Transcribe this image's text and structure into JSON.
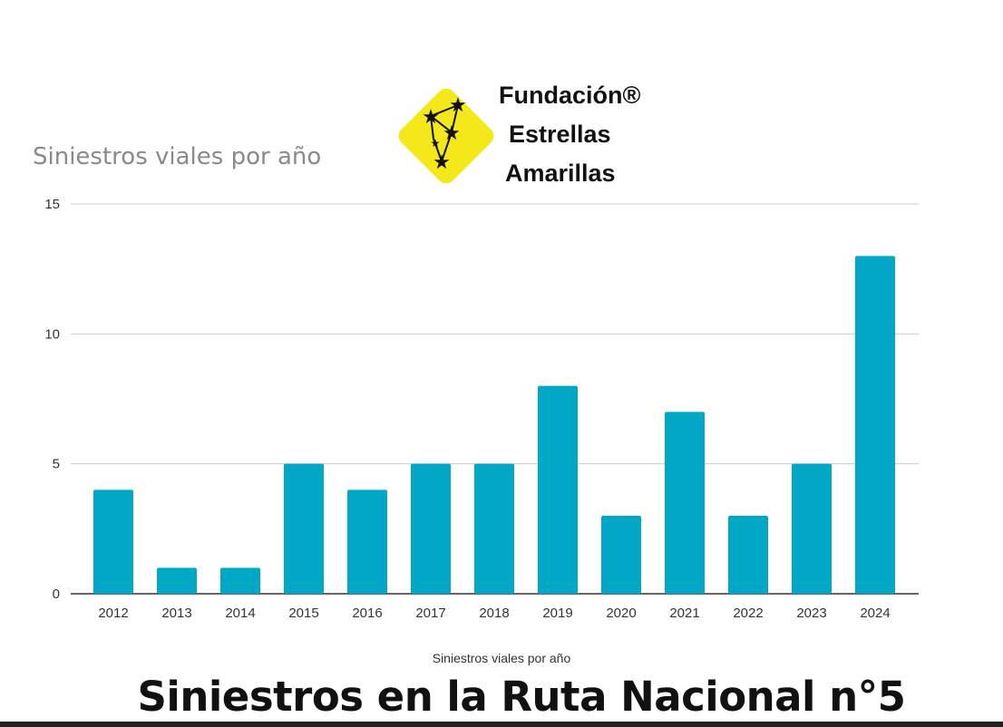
{
  "logo": {
    "line1": "Fundación®",
    "line2": "Estrellas",
    "line3": "Amarillas",
    "color": "#f5e81a"
  },
  "chart_data": {
    "type": "bar",
    "title": "Siniestros viales por año",
    "xlabel": "Siniestros viales por año",
    "ylabel": "",
    "categories": [
      "2012",
      "2013",
      "2014",
      "2015",
      "2016",
      "2017",
      "2018",
      "2019",
      "2020",
      "2021",
      "2022",
      "2023",
      "2024"
    ],
    "values": [
      4,
      1,
      1,
      5,
      4,
      5,
      5,
      8,
      3,
      7,
      3,
      5,
      13
    ],
    "ylim": [
      0,
      15
    ],
    "yticks": [
      "0",
      "5",
      "10",
      "15"
    ],
    "grid": true,
    "bar_color": "#00a8c6"
  },
  "caption": "Siniestros en la Ruta Nacional n°5"
}
